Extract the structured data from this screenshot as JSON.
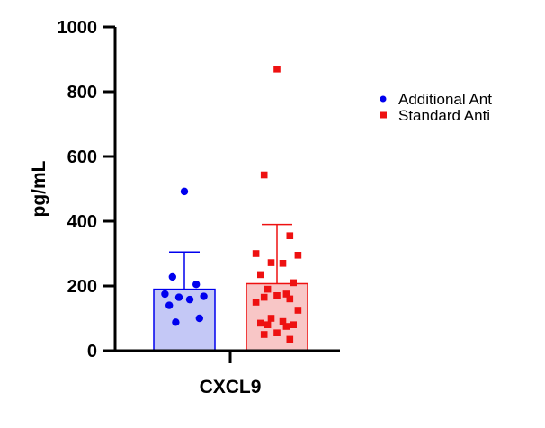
{
  "chart_data": {
    "type": "bar",
    "title": "",
    "xlabel": "CXCL9",
    "ylabel": "pg/mL",
    "ylim": [
      0,
      1000
    ],
    "yticks": [
      "0",
      "200",
      "400",
      "600",
      "800",
      "1000"
    ],
    "grid": false,
    "legend_position": "right",
    "series": [
      {
        "name": "Additional Ant",
        "color": "#0000ee",
        "bar_fill": "#c4c8f6",
        "marker": "circle",
        "mean": 190,
        "error": 115,
        "points": [
          492,
          228,
          205,
          175,
          168,
          165,
          158,
          140,
          100,
          88
        ]
      },
      {
        "name": "Standard Anti",
        "color": "#ee1111",
        "bar_fill": "#f8c6c6",
        "marker": "square",
        "mean": 207,
        "error": 183,
        "points": [
          870,
          543,
          355,
          300,
          295,
          272,
          270,
          235,
          210,
          190,
          175,
          170,
          165,
          160,
          150,
          125,
          100,
          90,
          85,
          80,
          80,
          75,
          55,
          50,
          35
        ]
      }
    ]
  }
}
